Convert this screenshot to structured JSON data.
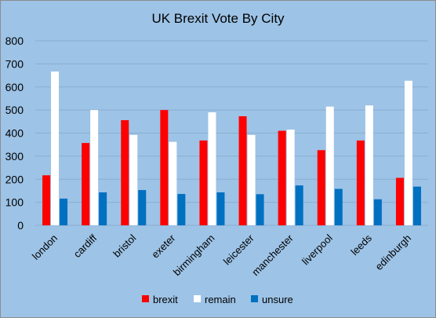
{
  "chart_data": {
    "type": "bar",
    "title": "UK Brexit Vote By City",
    "categories": [
      "london",
      "cardiff",
      "bristol",
      "exeter",
      "birmingham",
      "leicester",
      "manchester",
      "liverpool",
      "leeds",
      "edinburgh"
    ],
    "series": [
      {
        "name": "brexit",
        "color": "#ff0000",
        "values": [
          217,
          357,
          456,
          500,
          368,
          473,
          410,
          326,
          368,
          206
        ]
      },
      {
        "name": "remain",
        "color": "#ffffff",
        "values": [
          667,
          500,
          392,
          362,
          490,
          392,
          415,
          515,
          520,
          627
        ]
      },
      {
        "name": "unsure",
        "color": "#0070c0",
        "values": [
          116,
          143,
          153,
          136,
          143,
          135,
          173,
          158,
          113,
          168
        ]
      }
    ],
    "ylim": [
      0,
      800
    ],
    "yticks": [
      "0",
      "100",
      "200",
      "300",
      "400",
      "500",
      "600",
      "700",
      "800"
    ],
    "grid": true,
    "legend_position": "bottom",
    "background_color": "#9dc3e6"
  }
}
